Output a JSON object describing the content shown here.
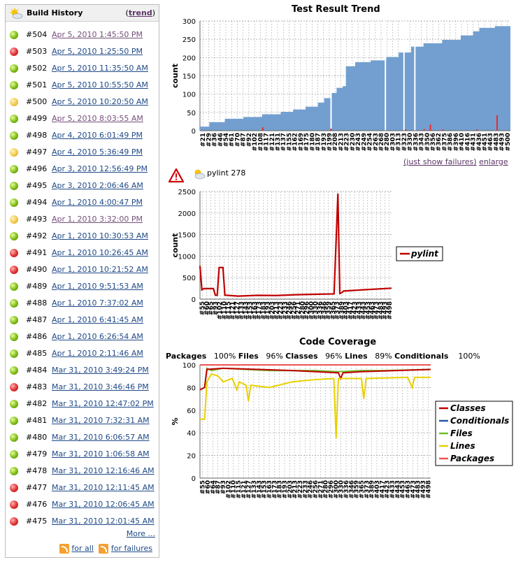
{
  "build_history": {
    "title": "Build History",
    "trend_link": "trend",
    "paren_open": "(",
    "paren_close": ")",
    "builds": [
      {
        "num": "#504",
        "date": "Apr 5, 2010 1:45:50 PM",
        "status": "blue",
        "visited": true
      },
      {
        "num": "#503",
        "date": "Apr 5, 2010 1:25:50 PM",
        "status": "red",
        "visited": false
      },
      {
        "num": "#502",
        "date": "Apr 5, 2010 11:35:50 AM",
        "status": "blue",
        "visited": false
      },
      {
        "num": "#501",
        "date": "Apr 5, 2010 10:55:50 AM",
        "status": "blue",
        "visited": false
      },
      {
        "num": "#500",
        "date": "Apr 5, 2010 10:20:50 AM",
        "status": "yellow",
        "visited": false
      },
      {
        "num": "#499",
        "date": "Apr 5, 2010 8:03:55 AM",
        "status": "blue",
        "visited": true
      },
      {
        "num": "#498",
        "date": "Apr 4, 2010 6:01:49 PM",
        "status": "blue",
        "visited": false
      },
      {
        "num": "#497",
        "date": "Apr 4, 2010 5:36:49 PM",
        "status": "yellow",
        "visited": false
      },
      {
        "num": "#496",
        "date": "Apr 3, 2010 12:56:49 PM",
        "status": "blue",
        "visited": false
      },
      {
        "num": "#495",
        "date": "Apr 3, 2010 2:06:46 AM",
        "status": "blue",
        "visited": false
      },
      {
        "num": "#494",
        "date": "Apr 1, 2010 4:00:47 PM",
        "status": "blue",
        "visited": false
      },
      {
        "num": "#493",
        "date": "Apr 1, 2010 3:32:00 PM",
        "status": "yellow",
        "visited": true
      },
      {
        "num": "#492",
        "date": "Apr 1, 2010 10:30:53 AM",
        "status": "blue",
        "visited": false
      },
      {
        "num": "#491",
        "date": "Apr 1, 2010 10:26:45 AM",
        "status": "red",
        "visited": false
      },
      {
        "num": "#490",
        "date": "Apr 1, 2010 10:21:52 AM",
        "status": "red",
        "visited": false
      },
      {
        "num": "#489",
        "date": "Apr 1, 2010 9:51:53 AM",
        "status": "blue",
        "visited": false
      },
      {
        "num": "#488",
        "date": "Apr 1, 2010 7:37:02 AM",
        "status": "blue",
        "visited": false
      },
      {
        "num": "#487",
        "date": "Apr 1, 2010 6:41:45 AM",
        "status": "blue",
        "visited": false
      },
      {
        "num": "#486",
        "date": "Apr 1, 2010 6:26:54 AM",
        "status": "blue",
        "visited": false
      },
      {
        "num": "#485",
        "date": "Apr 1, 2010 2:11:46 AM",
        "status": "blue",
        "visited": false
      },
      {
        "num": "#484",
        "date": "Mar 31, 2010 3:49:24 PM",
        "status": "blue",
        "visited": false
      },
      {
        "num": "#483",
        "date": "Mar 31, 2010 3:46:46 PM",
        "status": "red",
        "visited": false
      },
      {
        "num": "#482",
        "date": "Mar 31, 2010 12:47:02 PM",
        "status": "blue",
        "visited": false
      },
      {
        "num": "#481",
        "date": "Mar 31, 2010 7:32:31 AM",
        "status": "blue",
        "visited": false
      },
      {
        "num": "#480",
        "date": "Mar 31, 2010 6:06:57 AM",
        "status": "blue",
        "visited": false
      },
      {
        "num": "#479",
        "date": "Mar 31, 2010 1:06:58 AM",
        "status": "blue",
        "visited": false
      },
      {
        "num": "#478",
        "date": "Mar 31, 2010 12:16:46 AM",
        "status": "blue",
        "visited": false
      },
      {
        "num": "#477",
        "date": "Mar 31, 2010 12:11:45 AM",
        "status": "red",
        "visited": false
      },
      {
        "num": "#476",
        "date": "Mar 31, 2010 12:06:45 AM",
        "status": "red",
        "visited": false
      },
      {
        "num": "#475",
        "date": "Mar 31, 2010 12:01:45 AM",
        "status": "red",
        "visited": false
      }
    ],
    "more_link": "More ...",
    "feed_all": "for all",
    "feed_failures": "for failures"
  },
  "test_trend": {
    "title": "Test Result Trend",
    "ylabel": "count",
    "yticks": [
      "0",
      "50",
      "100",
      "150",
      "200",
      "250",
      "300"
    ],
    "xticks": [
      "#21",
      "#29",
      "#36",
      "#46",
      "#54",
      "#61",
      "#70",
      "#87",
      "#92",
      "#102",
      "#108",
      "#117",
      "#121",
      "#131",
      "#137",
      "#155",
      "#162",
      "#169",
      "#175",
      "#180",
      "#187",
      "#193",
      "#199",
      "#208",
      "#213",
      "#223",
      "#230",
      "#243",
      "#249",
      "#254",
      "#263",
      "#268",
      "#280",
      "#303",
      "#313",
      "#323",
      "#330",
      "#336",
      "#343",
      "#350",
      "#356",
      "#362",
      "#375",
      "#386",
      "#396",
      "#410",
      "#416",
      "#431",
      "#436",
      "#451",
      "#463",
      "#483",
      "#493",
      "#500"
    ],
    "just_failures_link": "(just show failures)",
    "enlarge_link": "enlarge"
  },
  "pylint": {
    "label": "pylint 278",
    "ylabel": "count",
    "yticks": [
      "0",
      "500",
      "1000",
      "1500",
      "2000",
      "2500"
    ],
    "xticks": [
      "#55",
      "#60",
      "#65",
      "#93",
      "#102",
      "#110",
      "#115",
      "#121",
      "#127",
      "#133",
      "#143",
      "#153",
      "#163",
      "#173",
      "#183",
      "#193",
      "#203",
      "#213",
      "#223",
      "#233",
      "#246",
      "#256",
      "#271",
      "#280",
      "#296",
      "#300",
      "#330",
      "#336",
      "#346",
      "#359",
      "#365",
      "#373",
      "#389",
      "#403",
      "#417",
      "#423",
      "#433",
      "#443",
      "#453",
      "#463",
      "#473",
      "#483",
      "#493",
      "#498"
    ],
    "legend": "pylint"
  },
  "coverage": {
    "title": "Code Coverage",
    "summary": [
      {
        "label": "Packages",
        "value": "100%"
      },
      {
        "label": "Files",
        "value": "96%"
      },
      {
        "label": "Classes",
        "value": "96%"
      },
      {
        "label": "Lines",
        "value": "89%"
      },
      {
        "label": "Conditionals",
        "value": "100%"
      }
    ],
    "ylabel": "%",
    "yticks": [
      "0",
      "20",
      "40",
      "60",
      "80",
      "100"
    ],
    "xticks": [
      "#55",
      "#60",
      "#64",
      "#87",
      "#93",
      "#102",
      "#110",
      "#115",
      "#121",
      "#127",
      "#133",
      "#143",
      "#153",
      "#163",
      "#173",
      "#183",
      "#193",
      "#203",
      "#213",
      "#223",
      "#233",
      "#246",
      "#256",
      "#271",
      "#280",
      "#296",
      "#300",
      "#330",
      "#336",
      "#346",
      "#359",
      "#365",
      "#373",
      "#389",
      "#403",
      "#417",
      "#423",
      "#433",
      "#443",
      "#453",
      "#463",
      "#473",
      "#483",
      "#493",
      "#498"
    ],
    "legend": [
      {
        "name": "Classes",
        "color": "#c00000"
      },
      {
        "name": "Conditionals",
        "color": "#2457a8"
      },
      {
        "name": "Files",
        "color": "#6bbf2a"
      },
      {
        "name": "Lines",
        "color": "#e8d000"
      },
      {
        "name": "Packages",
        "color": "#ee5555"
      }
    ]
  }
}
